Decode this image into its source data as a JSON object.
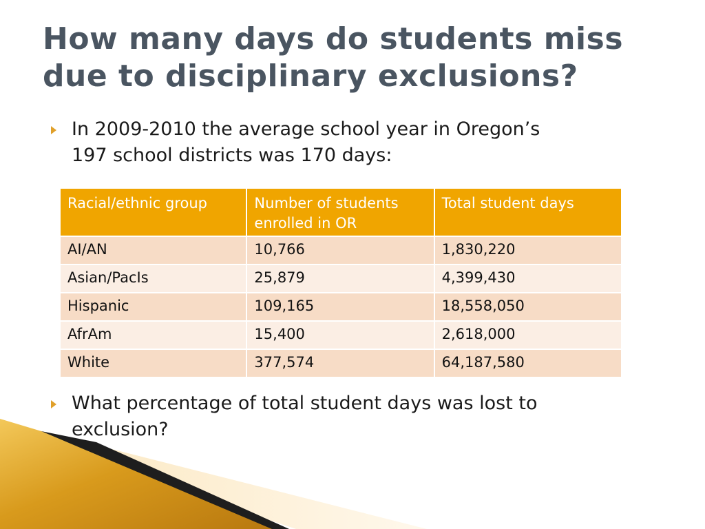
{
  "title": {
    "line1": "How many days do students miss",
    "line2": "due to disciplinary exclusions?"
  },
  "bullets": [
    {
      "line1": "In 2009-2010 the average school year in Oregon’s",
      "line2": "197 school districts was 170 days:"
    },
    {
      "line1": "What percentage of total student days was lost to",
      "line2": "exclusion?"
    }
  ],
  "table": {
    "headers": [
      "Racial/ethnic group",
      "Number of students enrolled in OR",
      "Total student days"
    ],
    "header_lines": {
      "col2_line1": "Number of students",
      "col2_line2": "enrolled in OR"
    },
    "rows": [
      [
        "AI/AN",
        "10,766",
        "1,830,220"
      ],
      [
        "Asian/PacIs",
        "25,879",
        "4,399,430"
      ],
      [
        "Hispanic",
        "109,165",
        "18,558,050"
      ],
      [
        "AfrAm",
        "15,400",
        "2,618,000"
      ],
      [
        "White",
        "377,574",
        "64,187,580"
      ]
    ]
  },
  "colors": {
    "title": "#4a5561",
    "bullet_marker": "#e0a02a",
    "header_bg": "#f0a500",
    "row_odd_bg": "#f7dcc6",
    "row_even_bg": "#fbeee4",
    "decor_gold": "#d89a1c"
  },
  "icons": {
    "bullet": "triangle-right-icon"
  }
}
